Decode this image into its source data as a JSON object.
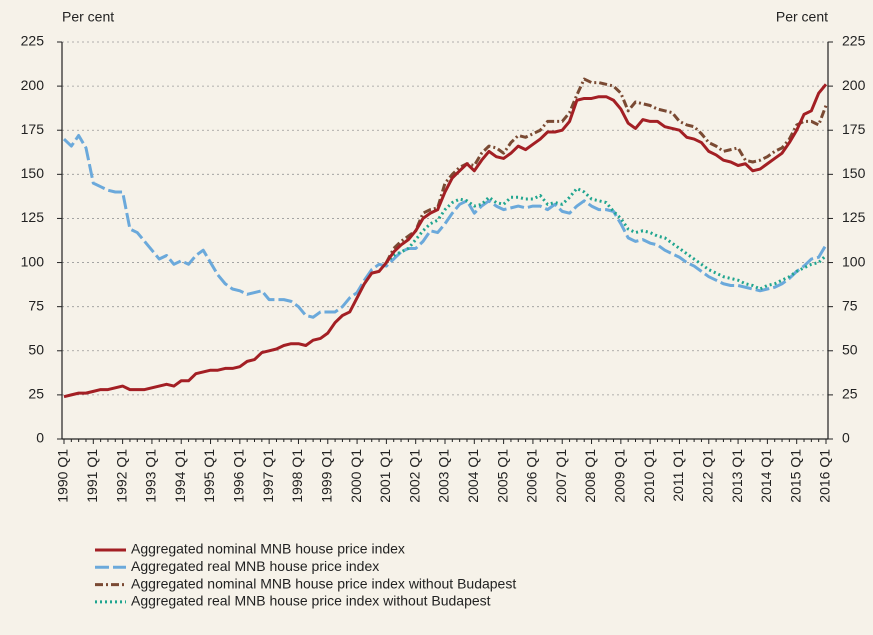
{
  "chart_data": {
    "type": "line",
    "y_label": "Per cent",
    "y2_label": "Per cent",
    "categories": [
      "1990 Q1",
      null,
      null,
      null,
      "1991 Q1",
      null,
      null,
      null,
      "1992 Q1",
      null,
      null,
      null,
      "1993 Q1",
      null,
      null,
      null,
      "1994 Q1",
      null,
      null,
      null,
      "1995 Q1",
      null,
      null,
      null,
      "1996 Q1",
      null,
      null,
      null,
      "1997 Q1",
      null,
      null,
      null,
      "1998 Q1",
      null,
      null,
      null,
      "1999 Q1",
      null,
      null,
      null,
      "2000 Q1",
      null,
      null,
      null,
      "2001 Q1",
      null,
      null,
      null,
      "2002 Q1",
      null,
      null,
      null,
      "2003 Q1",
      null,
      null,
      null,
      "2004 Q1",
      null,
      null,
      null,
      "2005 Q1",
      null,
      null,
      null,
      "2006 Q1",
      null,
      null,
      null,
      "2007 Q1",
      null,
      null,
      null,
      "2008 Q1",
      null,
      null,
      null,
      "2009 Q1",
      null,
      null,
      null,
      "2010 Q1",
      null,
      null,
      null,
      "2011 Q1",
      null,
      null,
      null,
      "2012 Q1",
      null,
      null,
      null,
      "2013 Q1",
      null,
      null,
      null,
      "2014 Q1",
      null,
      null,
      null,
      "2015 Q1",
      null,
      null,
      null,
      "2016 Q1"
    ],
    "series": [
      {
        "name": "Aggregated nominal MNB house price index",
        "color": "#a31f24",
        "dash": "solid",
        "values": [
          24,
          25,
          26,
          26,
          27,
          28,
          28,
          29,
          30,
          28,
          28,
          28,
          29,
          30,
          31,
          30,
          33,
          33,
          37,
          38,
          39,
          39,
          40,
          40,
          41,
          44,
          45,
          49,
          50,
          51,
          53,
          54,
          54,
          53,
          56,
          57,
          60,
          66,
          70,
          72,
          80,
          88,
          94,
          95,
          100,
          106,
          110,
          113,
          118,
          125,
          128,
          130,
          140,
          148,
          152,
          156,
          152,
          158,
          163,
          160,
          159,
          162,
          166,
          164,
          167,
          170,
          174,
          174,
          175,
          180,
          192,
          193,
          193,
          194,
          194,
          192,
          187,
          179,
          176,
          181,
          180,
          180,
          177,
          176,
          175,
          171,
          170,
          168,
          163,
          161,
          158,
          157,
          155,
          156,
          152,
          153,
          156,
          159,
          162,
          168,
          175,
          184,
          186,
          196,
          201
        ]
      },
      {
        "name": "Aggregated real MNB house price index",
        "color": "#6ba9db",
        "dash": "long-dash",
        "values": [
          170,
          166,
          172,
          165,
          145,
          143,
          141,
          140,
          140,
          119,
          117,
          112,
          107,
          102,
          104,
          99,
          101,
          99,
          104,
          107,
          100,
          93,
          88,
          85,
          84,
          82,
          83,
          84,
          79,
          79,
          79,
          78,
          75,
          70,
          69,
          72,
          72,
          72,
          75,
          80,
          83,
          90,
          96,
          99,
          98,
          102,
          106,
          108,
          108,
          112,
          118,
          117,
          122,
          128,
          133,
          135,
          128,
          132,
          135,
          132,
          130,
          131,
          132,
          131,
          132,
          132,
          130,
          133,
          129,
          128,
          132,
          135,
          132,
          130,
          130,
          129,
          122,
          114,
          112,
          113,
          111,
          110,
          107,
          105,
          103,
          100,
          98,
          95,
          92,
          90,
          88,
          87,
          87,
          86,
          85,
          84,
          85,
          86,
          88,
          91,
          95,
          98,
          102,
          103,
          110
        ]
      },
      {
        "name": "Aggregated nominal MNB house price index without Budapest",
        "color": "#7a4a33",
        "dash": "dash-dot",
        "values": [
          null,
          null,
          null,
          null,
          null,
          null,
          null,
          null,
          null,
          null,
          null,
          null,
          null,
          null,
          null,
          null,
          null,
          null,
          null,
          null,
          null,
          null,
          null,
          null,
          null,
          null,
          null,
          null,
          null,
          null,
          null,
          null,
          null,
          null,
          null,
          null,
          null,
          null,
          null,
          null,
          null,
          null,
          null,
          null,
          100,
          108,
          112,
          115,
          118,
          128,
          130,
          131,
          145,
          150,
          154,
          156,
          155,
          162,
          166,
          165,
          162,
          168,
          172,
          171,
          173,
          175,
          180,
          180,
          180,
          185,
          195,
          204,
          202,
          202,
          201,
          200,
          196,
          186,
          191,
          190,
          189,
          187,
          186,
          185,
          180,
          178,
          177,
          173,
          168,
          166,
          163,
          164,
          165,
          158,
          157,
          158,
          160,
          163,
          165,
          170,
          178,
          180,
          180,
          178,
          189
        ]
      },
      {
        "name": "Aggregated real MNB house price index without Budapest",
        "color": "#1fa58f",
        "dash": "dotted",
        "values": [
          null,
          null,
          null,
          null,
          null,
          null,
          null,
          null,
          null,
          null,
          null,
          null,
          null,
          null,
          null,
          null,
          null,
          null,
          null,
          null,
          null,
          null,
          null,
          null,
          null,
          null,
          null,
          null,
          null,
          null,
          null,
          null,
          null,
          null,
          null,
          null,
          null,
          null,
          null,
          null,
          null,
          null,
          null,
          null,
          100,
          104,
          106,
          108,
          113,
          118,
          122,
          124,
          130,
          134,
          136,
          135,
          132,
          133,
          137,
          134,
          133,
          137,
          137,
          136,
          136,
          138,
          133,
          134,
          133,
          137,
          142,
          140,
          136,
          135,
          134,
          129,
          125,
          119,
          117,
          118,
          117,
          115,
          114,
          111,
          108,
          105,
          102,
          99,
          96,
          94,
          92,
          91,
          90,
          88,
          87,
          85,
          87,
          88,
          90,
          92,
          95,
          97,
          99,
          100,
          104
        ]
      }
    ],
    "ylim": [
      0,
      225
    ],
    "yticks": [
      0,
      25,
      50,
      75,
      100,
      125,
      150,
      175,
      200,
      225
    ],
    "y2lim": [
      0,
      225
    ],
    "y2ticks": [
      0,
      25,
      50,
      75,
      100,
      125,
      150,
      175,
      200,
      225
    ],
    "grid": true
  }
}
